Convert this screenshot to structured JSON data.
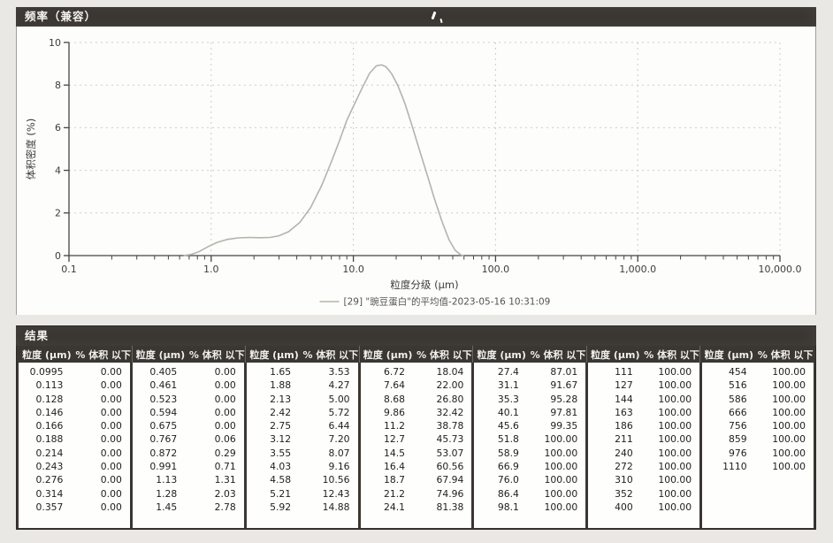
{
  "chart": {
    "panel_title": "频率（兼容）",
    "accent_dark": "#3a3632",
    "line_color": "#b2b5ab"
  },
  "chart_data": {
    "type": "line",
    "title": "频率（兼容）",
    "xlabel": "粒度分级 (µm)",
    "ylabel": "体积密度 (%)",
    "x_scale": "log",
    "xlim": [
      0.1,
      10000
    ],
    "ylim": [
      0,
      10
    ],
    "x_ticks": [
      "0.1",
      "1.0",
      "10.0",
      "100.0",
      "1,000.0",
      "10,000.0"
    ],
    "y_ticks": [
      0,
      2,
      4,
      6,
      8,
      10
    ],
    "grid": "dashed",
    "legend_position": "bottom",
    "legend": [
      "[29] \"豌豆蛋白\"的平均值-2023-05-16 10:31:09"
    ],
    "series": [
      {
        "name": "豌豆蛋白的平均值",
        "color": "#b2b5ab",
        "points": [
          [
            0.64,
            0
          ],
          [
            0.72,
            0.05
          ],
          [
            0.82,
            0.18
          ],
          [
            0.95,
            0.42
          ],
          [
            1.1,
            0.62
          ],
          [
            1.3,
            0.76
          ],
          [
            1.55,
            0.83
          ],
          [
            1.85,
            0.85
          ],
          [
            2.2,
            0.84
          ],
          [
            2.6,
            0.85
          ],
          [
            3.0,
            0.93
          ],
          [
            3.5,
            1.12
          ],
          [
            4.2,
            1.55
          ],
          [
            5.0,
            2.25
          ],
          [
            6.0,
            3.3
          ],
          [
            7.0,
            4.4
          ],
          [
            8.0,
            5.4
          ],
          [
            9.0,
            6.35
          ],
          [
            10.0,
            7.0
          ],
          [
            11.5,
            7.85
          ],
          [
            13.0,
            8.55
          ],
          [
            14.5,
            8.9
          ],
          [
            15.8,
            8.95
          ],
          [
            17.0,
            8.85
          ],
          [
            18.5,
            8.55
          ],
          [
            20.5,
            8.0
          ],
          [
            23.0,
            7.15
          ],
          [
            26.0,
            6.05
          ],
          [
            29.0,
            5.0
          ],
          [
            33.0,
            3.8
          ],
          [
            37.0,
            2.7
          ],
          [
            42.0,
            1.6
          ],
          [
            47.0,
            0.75
          ],
          [
            52.0,
            0.25
          ],
          [
            57.0,
            0.03
          ],
          [
            60.0,
            0
          ]
        ]
      }
    ]
  },
  "table": {
    "panel_title": "结果",
    "col_headers": {
      "size": "粒度 (µm)",
      "pct": "% 体积 以下"
    },
    "groups": [
      {
        "rows": [
          [
            "0.0995",
            "0.00"
          ],
          [
            "0.113",
            "0.00"
          ],
          [
            "0.128",
            "0.00"
          ],
          [
            "0.146",
            "0.00"
          ],
          [
            "0.166",
            "0.00"
          ],
          [
            "0.188",
            "0.00"
          ],
          [
            "0.214",
            "0.00"
          ],
          [
            "0.243",
            "0.00"
          ],
          [
            "0.276",
            "0.00"
          ],
          [
            "0.314",
            "0.00"
          ],
          [
            "0.357",
            "0.00"
          ]
        ]
      },
      {
        "rows": [
          [
            "0.405",
            "0.00"
          ],
          [
            "0.461",
            "0.00"
          ],
          [
            "0.523",
            "0.00"
          ],
          [
            "0.594",
            "0.00"
          ],
          [
            "0.675",
            "0.00"
          ],
          [
            "0.767",
            "0.06"
          ],
          [
            "0.872",
            "0.29"
          ],
          [
            "0.991",
            "0.71"
          ],
          [
            "1.13",
            "1.31"
          ],
          [
            "1.28",
            "2.03"
          ],
          [
            "1.45",
            "2.78"
          ]
        ]
      },
      {
        "rows": [
          [
            "1.65",
            "3.53"
          ],
          [
            "1.88",
            "4.27"
          ],
          [
            "2.13",
            "5.00"
          ],
          [
            "2.42",
            "5.72"
          ],
          [
            "2.75",
            "6.44"
          ],
          [
            "3.12",
            "7.20"
          ],
          [
            "3.55",
            "8.07"
          ],
          [
            "4.03",
            "9.16"
          ],
          [
            "4.58",
            "10.56"
          ],
          [
            "5.21",
            "12.43"
          ],
          [
            "5.92",
            "14.88"
          ]
        ]
      },
      {
        "rows": [
          [
            "6.72",
            "18.04"
          ],
          [
            "7.64",
            "22.00"
          ],
          [
            "8.68",
            "26.80"
          ],
          [
            "9.86",
            "32.42"
          ],
          [
            "11.2",
            "38.78"
          ],
          [
            "12.7",
            "45.73"
          ],
          [
            "14.5",
            "53.07"
          ],
          [
            "16.4",
            "60.56"
          ],
          [
            "18.7",
            "67.94"
          ],
          [
            "21.2",
            "74.96"
          ],
          [
            "24.1",
            "81.38"
          ]
        ]
      },
      {
        "rows": [
          [
            "27.4",
            "87.01"
          ],
          [
            "31.1",
            "91.67"
          ],
          [
            "35.3",
            "95.28"
          ],
          [
            "40.1",
            "97.81"
          ],
          [
            "45.6",
            "99.35"
          ],
          [
            "51.8",
            "100.00"
          ],
          [
            "58.9",
            "100.00"
          ],
          [
            "66.9",
            "100.00"
          ],
          [
            "76.0",
            "100.00"
          ],
          [
            "86.4",
            "100.00"
          ],
          [
            "98.1",
            "100.00"
          ]
        ]
      },
      {
        "rows": [
          [
            "111",
            "100.00"
          ],
          [
            "127",
            "100.00"
          ],
          [
            "144",
            "100.00"
          ],
          [
            "163",
            "100.00"
          ],
          [
            "186",
            "100.00"
          ],
          [
            "211",
            "100.00"
          ],
          [
            "240",
            "100.00"
          ],
          [
            "272",
            "100.00"
          ],
          [
            "310",
            "100.00"
          ],
          [
            "352",
            "100.00"
          ],
          [
            "400",
            "100.00"
          ]
        ]
      },
      {
        "rows": [
          [
            "454",
            "100.00"
          ],
          [
            "516",
            "100.00"
          ],
          [
            "586",
            "100.00"
          ],
          [
            "666",
            "100.00"
          ],
          [
            "756",
            "100.00"
          ],
          [
            "859",
            "100.00"
          ],
          [
            "976",
            "100.00"
          ],
          [
            "1110",
            "100.00"
          ]
        ]
      }
    ]
  }
}
